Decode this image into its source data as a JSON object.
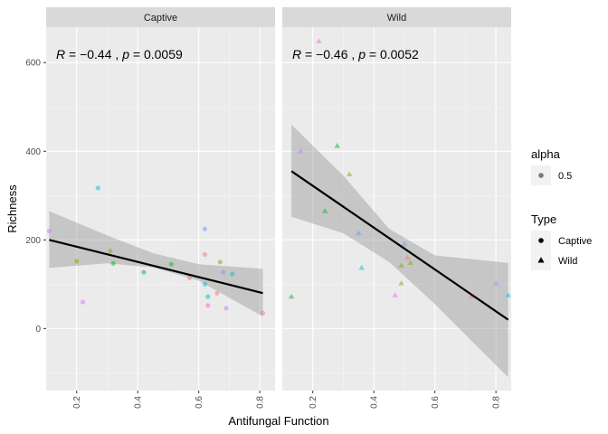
{
  "chart_data": {
    "type": "scatter",
    "xlabel": "Antifungal Function",
    "ylabel": "Richness",
    "xlim": [
      0.1,
      0.85
    ],
    "ylim": [
      -140,
      680
    ],
    "x_ticks": [
      0.2,
      0.4,
      0.6,
      0.8
    ],
    "y_ticks": [
      0,
      200,
      400,
      600
    ],
    "grid": true,
    "background": "#EBEBEB",
    "point_alpha": 0.5,
    "facets": [
      {
        "name": "Captive",
        "stat": {
          "r": "−0.44",
          "p": "0.0059"
        },
        "shape": "circle",
        "fit": {
          "x0": 0.11,
          "y0": 200,
          "x1": 0.81,
          "y1": 80
        },
        "band_upper": [
          [
            0.11,
            265
          ],
          [
            0.3,
            210
          ],
          [
            0.45,
            170
          ],
          [
            0.6,
            145
          ],
          [
            0.81,
            135
          ]
        ],
        "band_lower": [
          [
            0.11,
            137
          ],
          [
            0.3,
            147
          ],
          [
            0.45,
            138
          ],
          [
            0.6,
            108
          ],
          [
            0.81,
            27
          ]
        ],
        "points": [
          {
            "x": 0.11,
            "y": 220,
            "color": "#C77CFF"
          },
          {
            "x": 0.2,
            "y": 152,
            "color": "#7CAE00"
          },
          {
            "x": 0.22,
            "y": 60,
            "color": "#C77CFF"
          },
          {
            "x": 0.27,
            "y": 317,
            "color": "#00BFC4"
          },
          {
            "x": 0.31,
            "y": 175,
            "color": "#7CAE00"
          },
          {
            "x": 0.32,
            "y": 147,
            "color": "#00BA38"
          },
          {
            "x": 0.42,
            "y": 127,
            "color": "#00BA38"
          },
          {
            "x": 0.51,
            "y": 145,
            "color": "#00BA38"
          },
          {
            "x": 0.57,
            "y": 114,
            "color": "#F8766D"
          },
          {
            "x": 0.62,
            "y": 225,
            "color": "#619CFF"
          },
          {
            "x": 0.62,
            "y": 167,
            "color": "#F8766D"
          },
          {
            "x": 0.62,
            "y": 100,
            "color": "#00BFC4"
          },
          {
            "x": 0.63,
            "y": 52,
            "color": "#F564E3"
          },
          {
            "x": 0.63,
            "y": 72,
            "color": "#00BFC4"
          },
          {
            "x": 0.66,
            "y": 80,
            "color": "#F8766D"
          },
          {
            "x": 0.67,
            "y": 150,
            "color": "#7CAE00"
          },
          {
            "x": 0.68,
            "y": 127,
            "color": "#619CFF"
          },
          {
            "x": 0.69,
            "y": 46,
            "color": "#C77CFF"
          },
          {
            "x": 0.71,
            "y": 123,
            "color": "#00BFC4"
          },
          {
            "x": 0.81,
            "y": 35,
            "color": "#F8766D"
          }
        ]
      },
      {
        "name": "Wild",
        "stat": {
          "r": "−0.46",
          "p": "0.0052"
        },
        "shape": "triangle",
        "fit": {
          "x0": 0.13,
          "y0": 355,
          "x1": 0.84,
          "y1": 20
        },
        "band_upper": [
          [
            0.13,
            460
          ],
          [
            0.3,
            345
          ],
          [
            0.45,
            225
          ],
          [
            0.6,
            165
          ],
          [
            0.84,
            148
          ]
        ],
        "band_lower": [
          [
            0.13,
            252
          ],
          [
            0.3,
            215
          ],
          [
            0.45,
            150
          ],
          [
            0.6,
            55
          ],
          [
            0.84,
            -110
          ]
        ],
        "points": [
          {
            "x": 0.13,
            "y": 72,
            "color": "#00BA38"
          },
          {
            "x": 0.16,
            "y": 400,
            "color": "#C77CFF"
          },
          {
            "x": 0.22,
            "y": 648,
            "color": "#F564E3"
          },
          {
            "x": 0.24,
            "y": 265,
            "color": "#00BA38"
          },
          {
            "x": 0.28,
            "y": 412,
            "color": "#00BA38"
          },
          {
            "x": 0.32,
            "y": 348,
            "color": "#7CAE00"
          },
          {
            "x": 0.35,
            "y": 215,
            "color": "#619CFF"
          },
          {
            "x": 0.36,
            "y": 137,
            "color": "#00BFC4"
          },
          {
            "x": 0.47,
            "y": 75,
            "color": "#F564E3"
          },
          {
            "x": 0.49,
            "y": 102,
            "color": "#7CAE00"
          },
          {
            "x": 0.49,
            "y": 142,
            "color": "#7CAE00"
          },
          {
            "x": 0.5,
            "y": 190,
            "color": "#619CFF"
          },
          {
            "x": 0.51,
            "y": 160,
            "color": "#F8766D"
          },
          {
            "x": 0.52,
            "y": 148,
            "color": "#7CAE00"
          },
          {
            "x": 0.72,
            "y": 72,
            "color": "#F564E3"
          },
          {
            "x": 0.8,
            "y": 102,
            "color": "#C77CFF"
          },
          {
            "x": 0.84,
            "y": 75,
            "color": "#00BFC4"
          }
        ]
      }
    ],
    "legend": {
      "placement": "right",
      "groups": [
        {
          "title": "alpha",
          "items": [
            {
              "label": "0.5",
              "shape": "circle"
            }
          ]
        },
        {
          "title": "Type",
          "items": [
            {
              "label": "Captive",
              "shape": "circle"
            },
            {
              "label": "Wild",
              "shape": "triangle"
            }
          ]
        }
      ]
    }
  }
}
